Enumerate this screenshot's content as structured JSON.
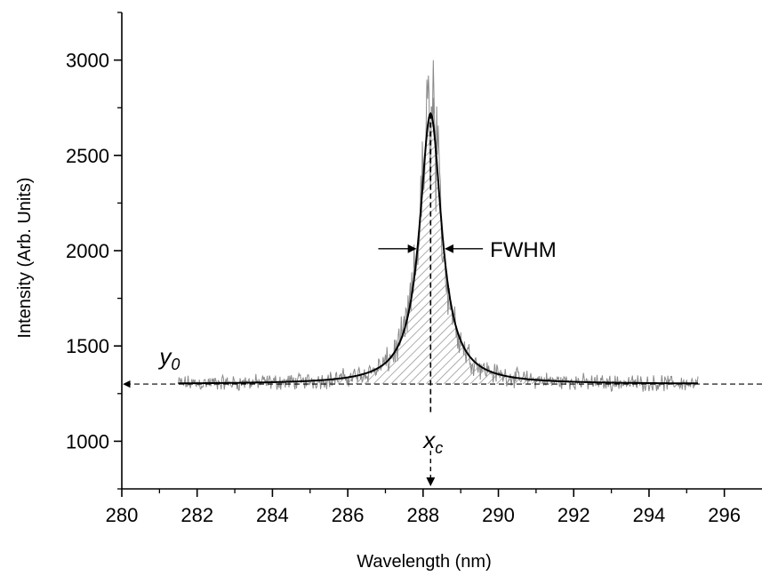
{
  "chart_data": {
    "type": "line",
    "xlabel": "Wavelength (nm)",
    "ylabel": "Intensity (Arb. Units)",
    "xlim": [
      280,
      297
    ],
    "ylim": [
      750,
      3250
    ],
    "x_ticks": [
      280,
      282,
      284,
      286,
      288,
      290,
      292,
      294,
      296
    ],
    "y_ticks": [
      1000,
      1500,
      2000,
      2500,
      3000
    ],
    "grid": false,
    "legend": "none",
    "series": [
      {
        "role": "measured-spectrum",
        "color": "#8a8a8a",
        "x_range": [
          281.5,
          295.3
        ],
        "baseline": 1300,
        "peak_center": 288.2,
        "peak_max": 3000
      },
      {
        "role": "lorentzian-fit",
        "color": "#000000",
        "x_range": [
          281.5,
          295.3
        ],
        "y0": 1300,
        "xc": 288.2,
        "amplitude": 1420,
        "fwhm": 0.7
      }
    ],
    "annotations": {
      "fwhm_label": "FWHM",
      "y0_label": "y",
      "y0_sub": "0",
      "xc_label": "x",
      "xc_sub": "c"
    }
  }
}
